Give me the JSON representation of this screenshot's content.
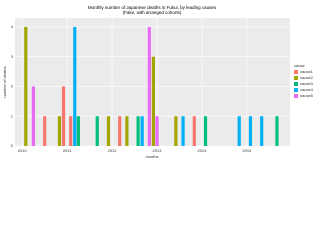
{
  "chart_data": {
    "type": "bar",
    "title": "Monthly number of Japanese deaths in Fukui, by leading causes",
    "subtitle": "(Fake, with arranged cohorts)",
    "x_label": "months",
    "y_label": "number of deaths",
    "legend_title": "cause",
    "xlim": [
      2009.84,
      2015.96
    ],
    "xticks": [
      2010,
      2011,
      2012,
      2013,
      2014,
      2015
    ],
    "ylim": [
      0,
      4.3
    ],
    "yticks": [
      0,
      1,
      2,
      3,
      4
    ],
    "grid": true,
    "legend_position": "right",
    "series": [
      {
        "name": "cause1",
        "color": "#F8766D",
        "x": [
          2010.5,
          2010.92,
          2011.08,
          2012.17,
          2013.83
        ],
        "values": [
          1,
          2,
          1,
          1,
          1
        ]
      },
      {
        "name": "cause2",
        "color": "#A3A500",
        "x": [
          2010.08,
          2010.83,
          2011.92,
          2012.33,
          2012.92,
          2013.42
        ],
        "values": [
          4,
          1,
          1,
          1,
          3,
          1
        ]
      },
      {
        "name": "cause3",
        "color": "#00BF7D",
        "x": [
          2011.25,
          2011.67,
          2012.58,
          2014.08,
          2015.67
        ],
        "values": [
          1,
          1,
          1,
          1,
          1
        ]
      },
      {
        "name": "cause4",
        "color": "#00B0F6",
        "x": [
          2011.17,
          2012.67,
          2013.58,
          2014.83,
          2015.08,
          2015.33
        ],
        "values": [
          4,
          1,
          1,
          1,
          1,
          1
        ]
      },
      {
        "name": "cause5",
        "color": "#E76BF3",
        "x": [
          2010.25,
          2012.83,
          2013.0
        ],
        "values": [
          2,
          4,
          1
        ]
      }
    ]
  }
}
